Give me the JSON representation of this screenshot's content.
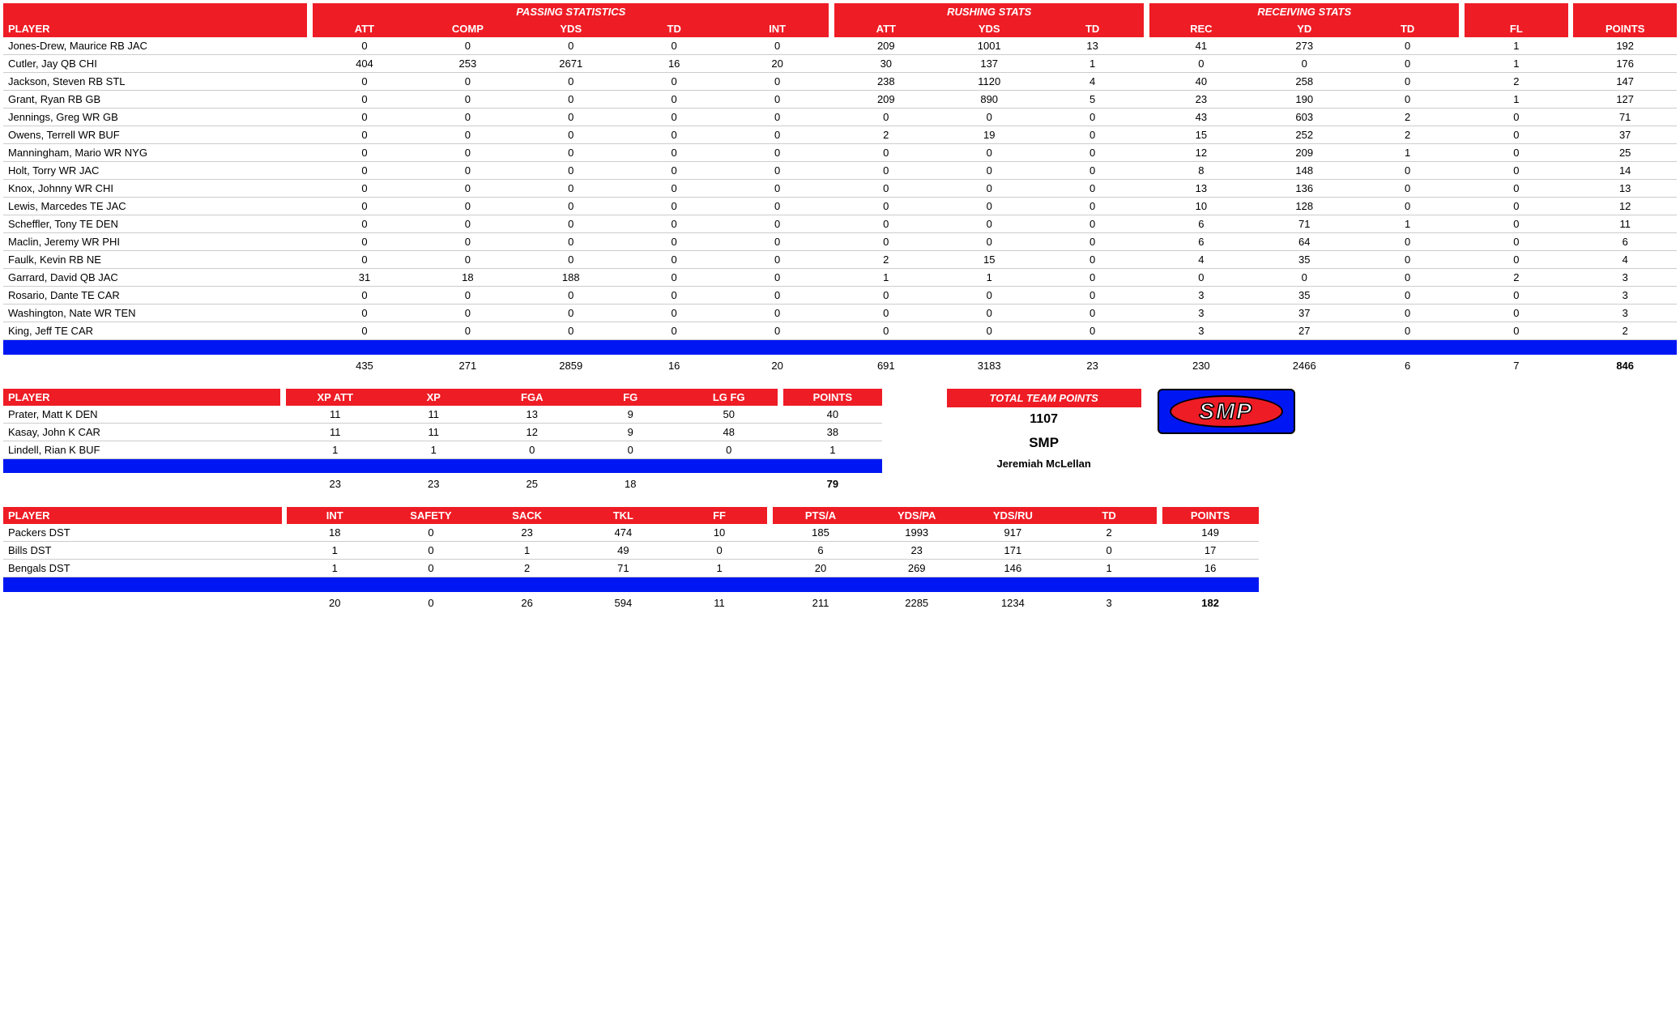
{
  "offense": {
    "groupHeaders": [
      "PASSING STATISTICS",
      "RUSHING STATS",
      "RECEIVING STATS"
    ],
    "playerLabel": "PLAYER",
    "cols": [
      "ATT",
      "COMP",
      "YDS",
      "TD",
      "INT",
      "ATT",
      "YDS",
      "TD",
      "REC",
      "YD",
      "TD",
      "FL",
      "POINTS"
    ],
    "rows": [
      {
        "p": "Jones-Drew, Maurice RB JAC",
        "v": [
          0,
          0,
          0,
          0,
          0,
          209,
          1001,
          13,
          41,
          273,
          0,
          1,
          192
        ]
      },
      {
        "p": "Cutler, Jay QB CHI",
        "v": [
          404,
          253,
          2671,
          16,
          20,
          30,
          137,
          1,
          0,
          0,
          0,
          1,
          176
        ]
      },
      {
        "p": "Jackson, Steven RB STL",
        "v": [
          0,
          0,
          0,
          0,
          0,
          238,
          1120,
          4,
          40,
          258,
          0,
          2,
          147
        ]
      },
      {
        "p": "Grant, Ryan RB GB",
        "v": [
          0,
          0,
          0,
          0,
          0,
          209,
          890,
          5,
          23,
          190,
          0,
          1,
          127
        ]
      },
      {
        "p": "Jennings, Greg WR GB",
        "v": [
          0,
          0,
          0,
          0,
          0,
          0,
          0,
          0,
          43,
          603,
          2,
          0,
          71
        ]
      },
      {
        "p": "Owens, Terrell WR BUF",
        "v": [
          0,
          0,
          0,
          0,
          0,
          2,
          19,
          0,
          15,
          252,
          2,
          0,
          37
        ]
      },
      {
        "p": "Manningham, Mario WR NYG",
        "v": [
          0,
          0,
          0,
          0,
          0,
          0,
          0,
          0,
          12,
          209,
          1,
          0,
          25
        ]
      },
      {
        "p": "Holt, Torry WR JAC",
        "v": [
          0,
          0,
          0,
          0,
          0,
          0,
          0,
          0,
          8,
          148,
          0,
          0,
          14
        ]
      },
      {
        "p": "Knox, Johnny WR CHI",
        "v": [
          0,
          0,
          0,
          0,
          0,
          0,
          0,
          0,
          13,
          136,
          0,
          0,
          13
        ]
      },
      {
        "p": "Lewis, Marcedes TE JAC",
        "v": [
          0,
          0,
          0,
          0,
          0,
          0,
          0,
          0,
          10,
          128,
          0,
          0,
          12
        ]
      },
      {
        "p": "Scheffler, Tony TE DEN",
        "v": [
          0,
          0,
          0,
          0,
          0,
          0,
          0,
          0,
          6,
          71,
          1,
          0,
          11
        ]
      },
      {
        "p": "Maclin, Jeremy WR PHI",
        "v": [
          0,
          0,
          0,
          0,
          0,
          0,
          0,
          0,
          6,
          64,
          0,
          0,
          6
        ]
      },
      {
        "p": "Faulk, Kevin RB NE",
        "v": [
          0,
          0,
          0,
          0,
          0,
          2,
          15,
          0,
          4,
          35,
          0,
          0,
          4
        ]
      },
      {
        "p": "Garrard, David QB JAC",
        "v": [
          31,
          18,
          188,
          0,
          0,
          1,
          1,
          0,
          0,
          0,
          0,
          2,
          3
        ]
      },
      {
        "p": "Rosario, Dante TE CAR",
        "v": [
          0,
          0,
          0,
          0,
          0,
          0,
          0,
          0,
          3,
          35,
          0,
          0,
          3
        ]
      },
      {
        "p": "Washington, Nate WR TEN",
        "v": [
          0,
          0,
          0,
          0,
          0,
          0,
          0,
          0,
          3,
          37,
          0,
          0,
          3
        ]
      },
      {
        "p": "King, Jeff TE CAR",
        "v": [
          0,
          0,
          0,
          0,
          0,
          0,
          0,
          0,
          3,
          27,
          0,
          0,
          2
        ]
      }
    ],
    "totals": [
      435,
      271,
      2859,
      16,
      20,
      691,
      3183,
      23,
      230,
      2466,
      6,
      7,
      846
    ],
    "colWidths": [
      "16.5%",
      "5.7%",
      "5.7%",
      "5.7%",
      "5.7%",
      "5.7%",
      "5.7%",
      "5.7%",
      "5.7%",
      "5.7%",
      "5.7%",
      "5.7%",
      "5.7%",
      "5.7%"
    ]
  },
  "kicking": {
    "playerLabel": "PLAYER",
    "cols": [
      "XP ATT",
      "XP",
      "FGA",
      "FG",
      "LG FG",
      "POINTS"
    ],
    "rows": [
      {
        "p": "Prater, Matt K DEN",
        "v": [
          11,
          11,
          13,
          9,
          50,
          40
        ]
      },
      {
        "p": "Kasay, John K CAR",
        "v": [
          11,
          11,
          12,
          9,
          48,
          38
        ]
      },
      {
        "p": "Lindell, Rian K BUF",
        "v": [
          1,
          1,
          0,
          0,
          0,
          1
        ]
      }
    ],
    "totals": [
      23,
      23,
      25,
      18,
      "",
      79
    ]
  },
  "defense": {
    "playerLabel": "PLAYER",
    "cols": [
      "INT",
      "SAFETY",
      "SACK",
      "TKL",
      "FF",
      "PTS/A",
      "YDS/PA",
      "YDS/RU",
      "TD",
      "POINTS"
    ],
    "rows": [
      {
        "p": "Packers DST",
        "v": [
          18,
          0,
          23,
          474,
          10,
          185,
          1993,
          917,
          2,
          149
        ]
      },
      {
        "p": "Bills DST",
        "v": [
          1,
          0,
          1,
          49,
          0,
          6,
          23,
          171,
          0,
          17
        ]
      },
      {
        "p": "Bengals DST",
        "v": [
          1,
          0,
          2,
          71,
          1,
          20,
          269,
          146,
          1,
          16
        ]
      }
    ],
    "totals": [
      20,
      0,
      26,
      594,
      11,
      211,
      2285,
      1234,
      3,
      182
    ]
  },
  "team": {
    "header": "TOTAL TEAM POINTS",
    "points": "1107",
    "name": "SMP",
    "owner": "Jeremiah McLellan",
    "logo": "SMP"
  },
  "style": {
    "red": "#ee1c25",
    "blue": "#0017f3",
    "border": "#cccccc",
    "text": "#000000",
    "fontSize": 13,
    "headerFontSize": 13
  }
}
